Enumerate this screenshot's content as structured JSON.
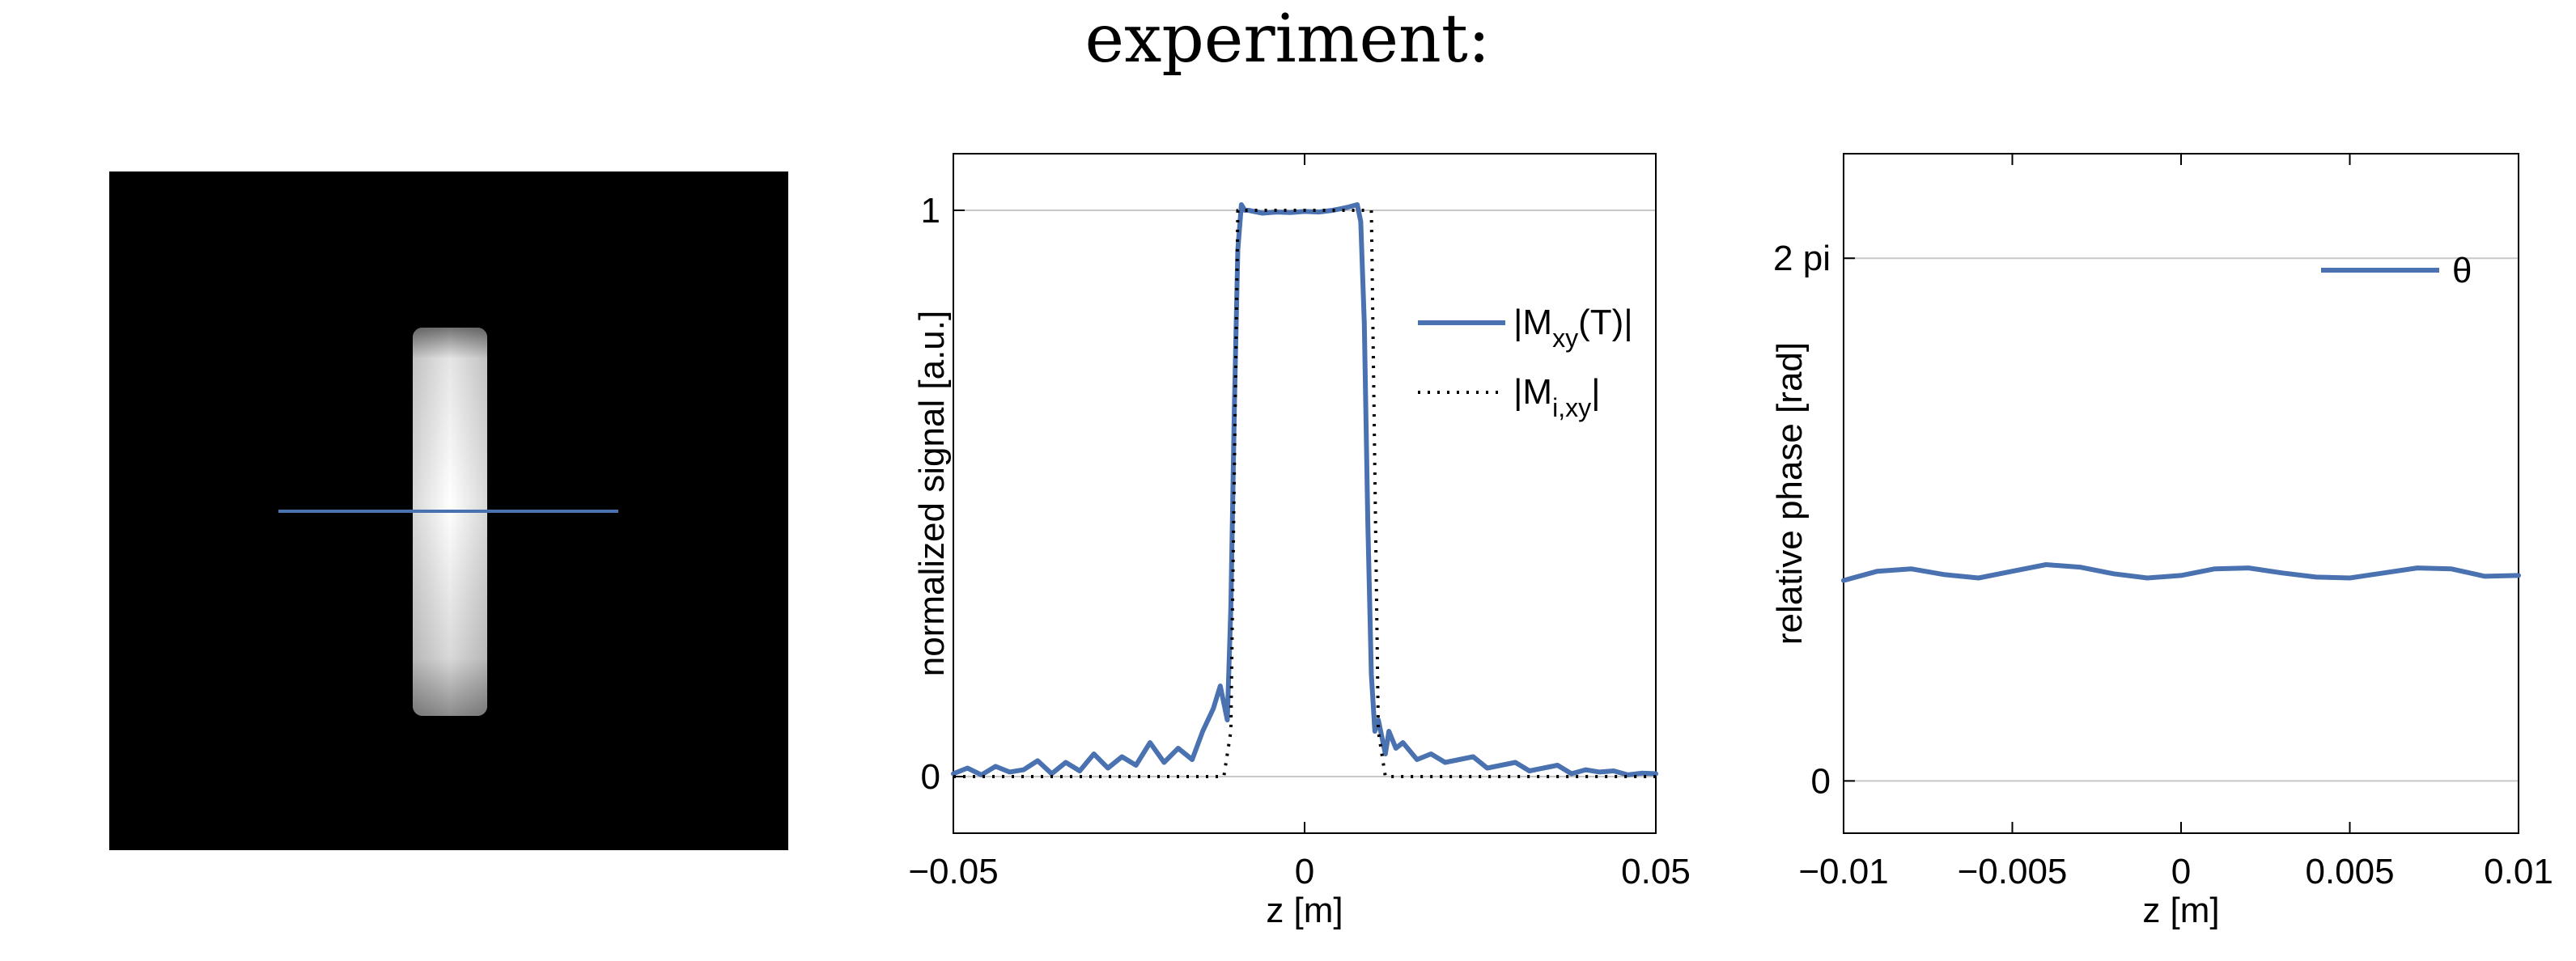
{
  "title": "experiment:",
  "colors": {
    "signal": "#4a72b0",
    "ideal": "#000000",
    "grid": "#c8c8c8",
    "image_bg": "#000000"
  },
  "image_panel": {
    "profile_line_color": "#4a72b0"
  },
  "chart_data": [
    {
      "type": "line",
      "xlabel": "z [m]",
      "ylabel": "normalized signal [a.u.]",
      "xlim": [
        -0.05,
        0.05
      ],
      "ylim": [
        -0.1,
        1.1
      ],
      "xticks": [
        -0.05,
        0,
        0.05
      ],
      "xtick_labels": [
        "−0.05",
        "0",
        "0.05"
      ],
      "yticks": [
        0,
        1
      ],
      "ytick_labels": [
        "0",
        "1"
      ],
      "grid": "horizontal",
      "legend_position": "right",
      "series": [
        {
          "name": "|M_xy(T)|",
          "legend_main": "|M",
          "legend_sub": "xy",
          "legend_tail": "(T)|",
          "style": "solid",
          "color": "#4a72b0",
          "x": [
            -0.05,
            -0.048,
            -0.046,
            -0.044,
            -0.042,
            -0.04,
            -0.038,
            -0.036,
            -0.034,
            -0.032,
            -0.03,
            -0.028,
            -0.026,
            -0.024,
            -0.022,
            -0.02,
            -0.018,
            -0.016,
            -0.0145,
            -0.013,
            -0.012,
            -0.011,
            -0.0105,
            -0.01,
            -0.0095,
            -0.009,
            -0.0085,
            -0.008,
            -0.006,
            -0.004,
            -0.002,
            0,
            0.002,
            0.004,
            0.006,
            0.0075,
            0.008,
            0.0085,
            0.009,
            0.0095,
            0.01,
            0.0105,
            0.011,
            0.0115,
            0.012,
            0.013,
            0.014,
            0.016,
            0.018,
            0.02,
            0.022,
            0.024,
            0.026,
            0.028,
            0.03,
            0.032,
            0.034,
            0.036,
            0.038,
            0.04,
            0.042,
            0.044,
            0.046,
            0.048,
            0.05
          ],
          "y": [
            0.005,
            0.015,
            0.003,
            0.018,
            0.008,
            0.012,
            0.028,
            0.005,
            0.025,
            0.01,
            0.04,
            0.015,
            0.035,
            0.02,
            0.06,
            0.025,
            0.05,
            0.03,
            0.08,
            0.12,
            0.16,
            0.1,
            0.3,
            0.65,
            0.93,
            1.01,
            1.0,
            1.0,
            0.995,
            0.997,
            0.996,
            0.998,
            0.997,
            1.0,
            1.005,
            1.01,
            0.98,
            0.8,
            0.45,
            0.18,
            0.08,
            0.1,
            0.07,
            0.04,
            0.08,
            0.05,
            0.06,
            0.03,
            0.04,
            0.025,
            0.03,
            0.035,
            0.015,
            0.02,
            0.025,
            0.01,
            0.015,
            0.02,
            0.005,
            0.012,
            0.008,
            0.01,
            0.003,
            0.006,
            0.005
          ]
        },
        {
          "name": "|M_i,xy|",
          "legend_main": "|M",
          "legend_sub": "i,xy",
          "legend_tail": "|",
          "style": "dotted",
          "color": "#000000",
          "x": [
            -0.05,
            -0.0115,
            -0.0105,
            -0.0095,
            0.0095,
            0.0105,
            0.0115,
            0.05
          ],
          "y": [
            0,
            0,
            0.08,
            1.0,
            1.0,
            0.08,
            0,
            0
          ]
        }
      ]
    },
    {
      "type": "line",
      "xlabel": "z [m]",
      "ylabel": "relative phase [rad]",
      "xlim": [
        -0.01,
        0.01
      ],
      "ylim": [
        -0.6283,
        7.54
      ],
      "xticks": [
        -0.01,
        -0.005,
        0,
        0.005,
        0.01
      ],
      "xtick_labels": [
        "−0.01",
        "−0.005",
        "0",
        "0.005",
        "0.01"
      ],
      "yticks": [
        0,
        6.2832
      ],
      "ytick_labels": [
        "0",
        "2 pi"
      ],
      "grid": "horizontal",
      "legend_position": "top-right",
      "series": [
        {
          "name": "θ",
          "style": "solid",
          "color": "#4a72b0",
          "x": [
            -0.01,
            -0.009,
            -0.008,
            -0.007,
            -0.006,
            -0.005,
            -0.004,
            -0.003,
            -0.002,
            -0.001,
            0,
            0.001,
            0.002,
            0.003,
            0.004,
            0.005,
            0.006,
            0.007,
            0.008,
            0.009,
            0.01
          ],
          "y": [
            2.41,
            2.52,
            2.55,
            2.48,
            2.44,
            2.52,
            2.6,
            2.57,
            2.49,
            2.44,
            2.47,
            2.55,
            2.56,
            2.5,
            2.45,
            2.44,
            2.5,
            2.56,
            2.55,
            2.46,
            2.47
          ]
        }
      ]
    }
  ]
}
